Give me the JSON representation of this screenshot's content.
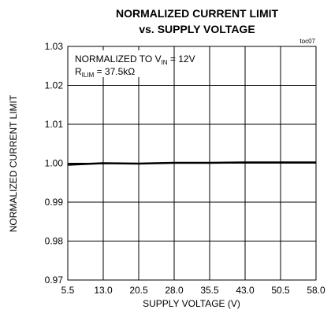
{
  "chart_data": {
    "type": "line",
    "title_line1": "NORMALIZED CURRENT LIMIT",
    "title_line2": "vs. SUPPLY VOLTAGE",
    "figure_code": "toc07",
    "xlabel": "SUPPLY VOLTAGE (V)",
    "ylabel": "NORMALIZED CURRENT LIMIT",
    "xlim": [
      5.5,
      58.0
    ],
    "ylim": [
      0.97,
      1.03
    ],
    "x_ticks": [
      5.5,
      13.0,
      20.5,
      28.0,
      35.5,
      43.0,
      50.5,
      58.0
    ],
    "x_tick_labels": [
      "5.5",
      "13.0",
      "20.5",
      "28.0",
      "35.5",
      "43.0",
      "50.5",
      "58.0"
    ],
    "y_ticks": [
      0.97,
      0.98,
      0.99,
      1.0,
      1.01,
      1.02,
      1.03
    ],
    "y_tick_labels": [
      "0.97",
      "0.98",
      "0.99",
      "1.00",
      "1.01",
      "1.02",
      "1.03"
    ],
    "grid": true,
    "annotation": {
      "line1_prefix": "NORMALIZED TO V",
      "line1_sub": "IN",
      "line1_suffix": " = 12V",
      "line2_prefix": "R",
      "line2_sub": "ILIM",
      "line2_suffix": " = 37.5kΩ"
    },
    "series": [
      {
        "x": [
          5.5,
          9.0,
          13.0,
          20.5,
          24.0,
          28.0,
          35.5,
          43.0,
          50.5,
          58.0
        ],
        "y": [
          0.9996,
          0.9998,
          1.0,
          0.9999,
          1.0,
          1.0001,
          1.0001,
          1.0002,
          1.0002,
          1.0002
        ]
      }
    ]
  }
}
